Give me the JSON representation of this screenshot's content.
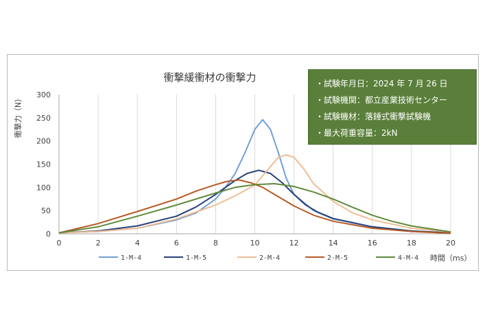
{
  "chart_data": {
    "type": "line",
    "title": "衝撃緩衝材の衝撃力",
    "xlabel": "時間（ms）",
    "ylabel": "衝撃力（N）",
    "xlim": [
      0,
      20
    ],
    "ylim": [
      0,
      300
    ],
    "x_ticks": [
      0,
      2,
      4,
      6,
      8,
      10,
      12,
      14,
      16,
      18,
      20
    ],
    "y_ticks": [
      0,
      50,
      100,
      150,
      200,
      250,
      300
    ],
    "grid": "vertical",
    "legend_position": "bottom",
    "series": [
      {
        "name": "1-M-4",
        "color": "#6f9fd4",
        "points": [
          [
            0,
            2
          ],
          [
            2,
            5
          ],
          [
            4,
            12
          ],
          [
            6,
            30
          ],
          [
            7,
            45
          ],
          [
            8,
            75
          ],
          [
            8.5,
            100
          ],
          [
            9,
            130
          ],
          [
            9.5,
            175
          ],
          [
            10,
            225
          ],
          [
            10.4,
            246
          ],
          [
            10.8,
            225
          ],
          [
            11.2,
            175
          ],
          [
            11.6,
            120
          ],
          [
            12,
            85
          ],
          [
            13,
            50
          ],
          [
            14,
            32
          ],
          [
            16,
            15
          ],
          [
            18,
            6
          ],
          [
            20,
            2
          ]
        ]
      },
      {
        "name": "1-M-5",
        "color": "#263f7a",
        "points": [
          [
            0,
            2
          ],
          [
            2,
            6
          ],
          [
            4,
            17
          ],
          [
            6,
            38
          ],
          [
            7,
            58
          ],
          [
            8,
            85
          ],
          [
            9,
            115
          ],
          [
            9.6,
            130
          ],
          [
            10.2,
            137
          ],
          [
            10.8,
            130
          ],
          [
            11.4,
            110
          ],
          [
            12,
            85
          ],
          [
            12.6,
            62
          ],
          [
            13.2,
            47
          ],
          [
            14,
            33
          ],
          [
            16,
            15
          ],
          [
            18,
            6
          ],
          [
            20,
            2
          ]
        ]
      },
      {
        "name": "2-M-4",
        "color": "#efbd96",
        "points": [
          [
            0,
            2
          ],
          [
            2,
            5
          ],
          [
            4,
            12
          ],
          [
            6,
            32
          ],
          [
            8,
            62
          ],
          [
            9,
            82
          ],
          [
            10,
            105
          ],
          [
            10.7,
            140
          ],
          [
            11.2,
            165
          ],
          [
            11.6,
            170
          ],
          [
            12,
            165
          ],
          [
            12.5,
            140
          ],
          [
            13,
            108
          ],
          [
            14,
            70
          ],
          [
            15,
            45
          ],
          [
            16,
            30
          ],
          [
            18,
            12
          ],
          [
            20,
            4
          ]
        ]
      },
      {
        "name": "2-M-5",
        "color": "#b55a24",
        "points": [
          [
            0,
            2
          ],
          [
            2,
            22
          ],
          [
            4,
            48
          ],
          [
            6,
            75
          ],
          [
            7,
            92
          ],
          [
            8,
            106
          ],
          [
            8.6,
            113
          ],
          [
            9.2,
            116
          ],
          [
            9.8,
            110
          ],
          [
            10.4,
            100
          ],
          [
            11,
            85
          ],
          [
            12,
            60
          ],
          [
            13,
            40
          ],
          [
            14,
            27
          ],
          [
            16,
            12
          ],
          [
            18,
            5
          ],
          [
            20,
            1
          ]
        ]
      },
      {
        "name": "4-M-4",
        "color": "#5f8a3a",
        "points": [
          [
            0,
            2
          ],
          [
            2,
            15
          ],
          [
            4,
            38
          ],
          [
            6,
            62
          ],
          [
            8,
            88
          ],
          [
            9,
            100
          ],
          [
            10,
            106
          ],
          [
            11,
            108
          ],
          [
            12,
            102
          ],
          [
            13,
            90
          ],
          [
            14,
            75
          ],
          [
            15,
            57
          ],
          [
            16,
            40
          ],
          [
            17,
            27
          ],
          [
            18,
            17
          ],
          [
            20,
            4
          ]
        ]
      }
    ]
  },
  "info_box": {
    "lines": [
      "・試験年月日：2024 年 7 月 26 日",
      "・試験機関：都立産業技術センター",
      "・試験機材：落錘式衝撃試験機",
      "・最大荷重容量：2kN"
    ]
  },
  "colors": {
    "info_box_background": "#5a7f3a",
    "grid": "#d9d9d9",
    "axis": "#a6a6a6"
  }
}
